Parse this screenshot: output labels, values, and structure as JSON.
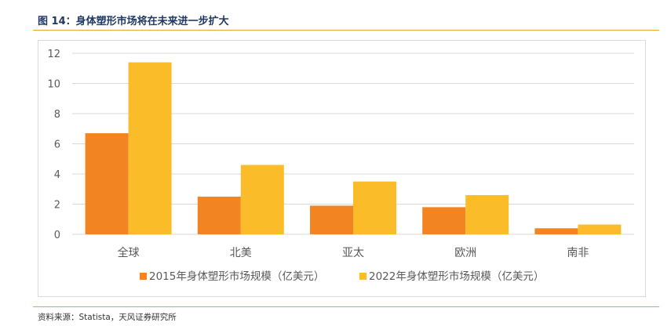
{
  "figure": {
    "title": "图 14：身体塑形市场将在未来进一步扩大",
    "source": "资料来源：Statista，天风证券研究所"
  },
  "colors": {
    "accent_rule": "#e8a33c",
    "title": "#1f3864",
    "series_2015": "#f28522",
    "series_2022": "#fbbc2a",
    "grid": "#d9d9d9",
    "axis_text": "#595959"
  },
  "chart_data": {
    "type": "bar",
    "categories": [
      "全球",
      "北美",
      "亚太",
      "欧洲",
      "南非"
    ],
    "series": [
      {
        "name": "2015年身体塑形市场规模（亿美元）",
        "values": [
          6.7,
          2.5,
          1.9,
          1.8,
          0.4
        ]
      },
      {
        "name": "2022年身体塑形市场规模（亿美元）",
        "values": [
          11.4,
          4.6,
          3.5,
          2.6,
          0.65
        ]
      }
    ],
    "ylim": [
      0,
      12
    ],
    "yticks": [
      0,
      2,
      4,
      6,
      8,
      10,
      12
    ],
    "grid": true,
    "legend_position": "bottom"
  }
}
